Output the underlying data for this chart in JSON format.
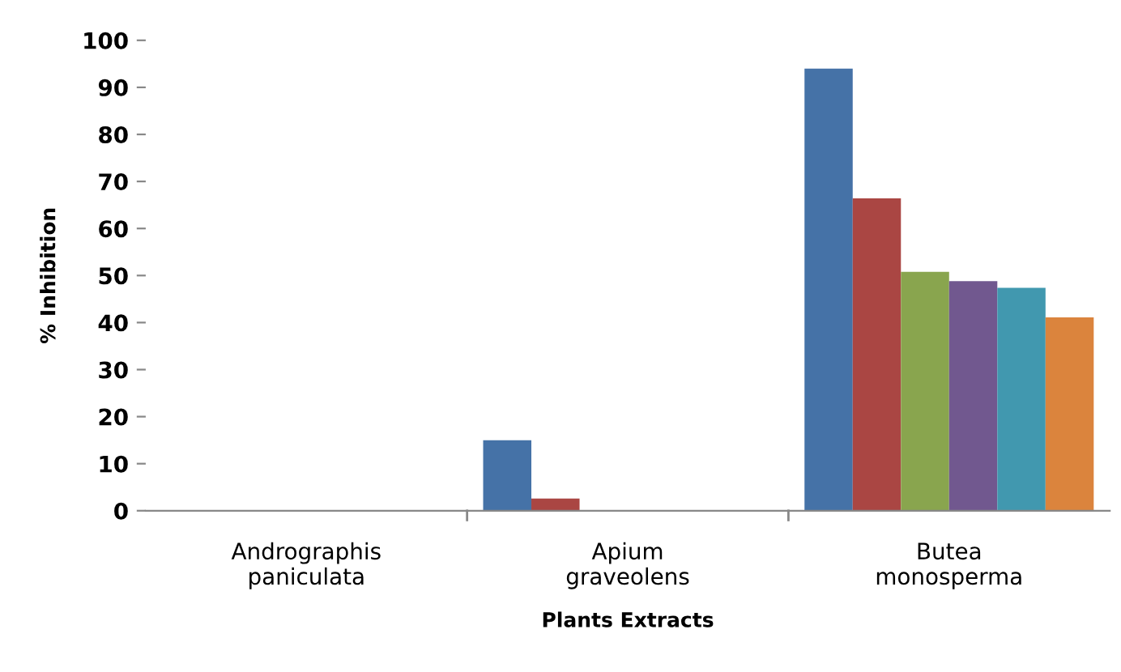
{
  "chart_data": {
    "type": "bar",
    "xlabel": "Plants Extracts",
    "ylabel": "% Inhibition",
    "categories": [
      "Andrographis\npaniculata",
      "Apium\ngraveolens",
      "Butea\nmonosperma"
    ],
    "series": [
      {
        "color": "#4572a7",
        "values": [
          0,
          15,
          94
        ]
      },
      {
        "color": "#aa4643",
        "values": [
          0,
          2.6,
          66.4
        ]
      },
      {
        "color": "#89a54e",
        "values": [
          0,
          0,
          50.8
        ]
      },
      {
        "color": "#71588f",
        "values": [
          0,
          0,
          48.8
        ]
      },
      {
        "color": "#4198af",
        "values": [
          0,
          0,
          47.4
        ]
      },
      {
        "color": "#db843d",
        "values": [
          0,
          0,
          41.1
        ]
      }
    ],
    "ylim": [
      0,
      100
    ],
    "yticks": [
      0,
      10,
      20,
      30,
      40,
      50,
      60,
      70,
      80,
      90,
      100
    ],
    "grid": false,
    "legend": false
  }
}
